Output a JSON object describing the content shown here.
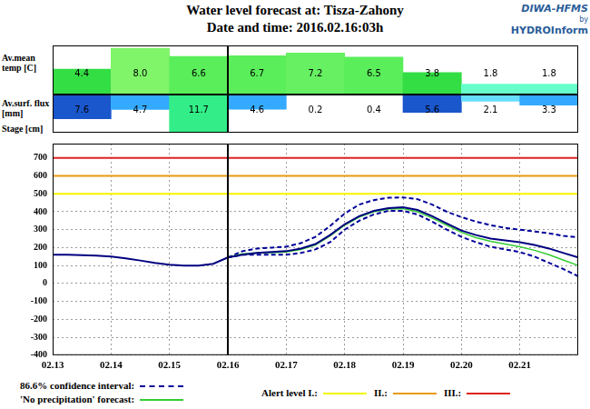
{
  "header": {
    "title": "Water level forecast at: Tisza-Zahony",
    "subtitle": "Date and time: 2016.02.16:03h",
    "logo": [
      "DIWA-HFMS",
      "by",
      "HYDROInform"
    ]
  },
  "chart_data": [
    {
      "type": "bar",
      "y_label": "Av.mean temp [C]",
      "categories": [
        "02.13",
        "02.14",
        "02.15",
        "02.16",
        "02.17",
        "02.18",
        "02.19",
        "02.20",
        "02.21"
      ],
      "values": [
        4.4,
        8.0,
        6.6,
        6.7,
        7.2,
        6.5,
        3.8,
        1.8,
        1.8
      ],
      "value_labels": [
        "4.4",
        "8.0",
        "6.6",
        "6.7",
        "7.2",
        "6.5",
        "3.8",
        "1.8",
        "1.8"
      ],
      "colors": [
        "#33dd44",
        "#80f56a",
        "#5aee5a",
        "#5aee5a",
        "#66f062",
        "#5aee5a",
        "#33dd44",
        "#66ffcc",
        "#66ffcc"
      ],
      "ylim": [
        0,
        8.5
      ],
      "tick_labels": false,
      "grid": false,
      "data_labels": true
    },
    {
      "type": "bar",
      "y_label": "Av.surf. flux [mm]",
      "categories": [
        "02.13",
        "02.14",
        "02.15",
        "02.16",
        "02.17",
        "02.18",
        "02.19",
        "02.20",
        "02.21"
      ],
      "values": [
        7.6,
        4.7,
        11.7,
        4.6,
        0.2,
        0.4,
        5.6,
        2.1,
        3.3
      ],
      "colors": [
        "#1a56cc",
        "#33aaff",
        "#33ee88",
        "#33aaff",
        "#ffffff",
        "#ffffff",
        "#1a56cc",
        "#66ddff",
        "#33aaff"
      ],
      "ylim": [
        0,
        12
      ],
      "tick_labels": false,
      "grid": false,
      "data_labels": true
    },
    {
      "type": "line",
      "y_label": "Stage [cm]",
      "categories": [
        "02.13",
        null,
        null,
        null,
        "02.14",
        null,
        null,
        null,
        "02.15",
        null,
        null,
        null,
        "02.16",
        null,
        null,
        null,
        "02.17",
        null,
        null,
        null,
        "02.18",
        null,
        null,
        null,
        "02.19",
        null,
        null,
        null,
        "02.20",
        null,
        null,
        null,
        "02.21",
        null,
        null,
        null,
        null
      ],
      "series": [
        {
          "color": "#000080",
          "values": [
            160,
            160,
            158,
            155,
            150,
            140,
            128,
            115,
            105,
            100,
            100,
            110,
            145,
            160,
            170,
            175,
            180,
            195,
            220,
            270,
            330,
            375,
            405,
            420,
            425,
            410,
            375,
            335,
            295,
            270,
            250,
            240,
            230,
            215,
            195,
            170,
            145
          ]
        },
        {
          "name": "86.6% confidence interval:",
          "color": "#000099",
          "line_style": "dashed",
          "upper": [
            null,
            null,
            null,
            null,
            null,
            null,
            null,
            null,
            null,
            null,
            null,
            null,
            145,
            180,
            195,
            200,
            205,
            225,
            260,
            320,
            390,
            440,
            465,
            478,
            480,
            470,
            440,
            400,
            370,
            345,
            325,
            310,
            300,
            290,
            280,
            265,
            258
          ],
          "lower": [
            null,
            null,
            null,
            null,
            null,
            null,
            null,
            null,
            null,
            null,
            null,
            null,
            145,
            160,
            160,
            160,
            160,
            170,
            190,
            230,
            300,
            350,
            385,
            405,
            405,
            385,
            345,
            300,
            260,
            230,
            205,
            190,
            175,
            150,
            115,
            80,
            40
          ]
        },
        {
          "name": "'No precipitation' forecast:",
          "color": "#33cc33",
          "values": [
            null,
            null,
            null,
            null,
            null,
            null,
            null,
            null,
            null,
            null,
            null,
            null,
            145,
            165,
            170,
            172,
            175,
            190,
            215,
            265,
            325,
            370,
            400,
            415,
            418,
            400,
            365,
            325,
            285,
            255,
            235,
            220,
            205,
            185,
            160,
            130,
            100
          ]
        }
      ],
      "alert_levels": [
        {
          "name": "Alert level I.:",
          "value": 500,
          "color": "#f5f500"
        },
        {
          "name": "II.:",
          "value": 600,
          "color": "#e89a10"
        },
        {
          "name": "III.:",
          "value": 700,
          "color": "#dd2222"
        }
      ],
      "annotations": [
        {
          "type": "vline",
          "x": "02.16",
          "color": "#000000"
        }
      ],
      "ylim": [
        -400,
        780
      ],
      "yticks": [
        -400,
        -300,
        -200,
        -100,
        0,
        100,
        200,
        300,
        400,
        500,
        600,
        700
      ],
      "grid": true
    }
  ]
}
